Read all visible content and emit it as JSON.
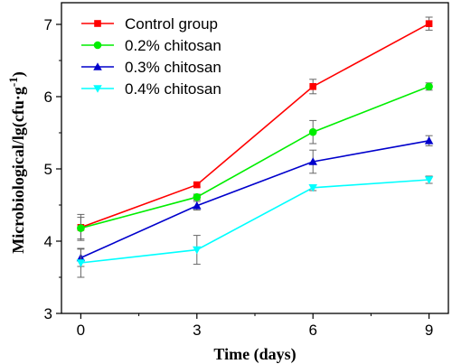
{
  "chart_data": {
    "type": "line",
    "title": "",
    "xlabel": "Time (days)",
    "ylabel_parts": [
      "Microbiological/lg(cfu",
      "·",
      "g",
      "-1",
      ")"
    ],
    "x": [
      0,
      3,
      6,
      9
    ],
    "xlim": [
      -0.5,
      9.5
    ],
    "ylim": [
      3,
      7.3
    ],
    "xticks": [
      0,
      3,
      6,
      9
    ],
    "yticks": [
      3,
      4,
      5,
      6,
      7
    ],
    "grid": false,
    "legend_position": "top-left",
    "series": [
      {
        "name": "Control group",
        "color": "#ff0000",
        "marker": "square",
        "values": [
          4.19,
          4.78,
          6.14,
          7.01
        ],
        "errors": [
          0.18,
          0.03,
          0.1,
          0.09
        ]
      },
      {
        "name": "0.2% chitosan",
        "color": "#00ee00",
        "marker": "circle",
        "values": [
          4.18,
          4.61,
          5.51,
          6.14
        ],
        "errors": [
          0.15,
          0.04,
          0.16,
          0.05
        ]
      },
      {
        "name": "0.3% chitosan",
        "color": "#0000cc",
        "marker": "triangle-up",
        "values": [
          3.77,
          4.49,
          5.1,
          5.39
        ],
        "errors": [
          0.12,
          0.06,
          0.16,
          0.07
        ]
      },
      {
        "name": "0.4% chitosan",
        "color": "#00ffff",
        "marker": "triangle-down",
        "values": [
          3.7,
          3.88,
          4.74,
          4.85
        ],
        "errors": [
          0.2,
          0.2,
          0.04,
          0.05
        ]
      }
    ]
  }
}
